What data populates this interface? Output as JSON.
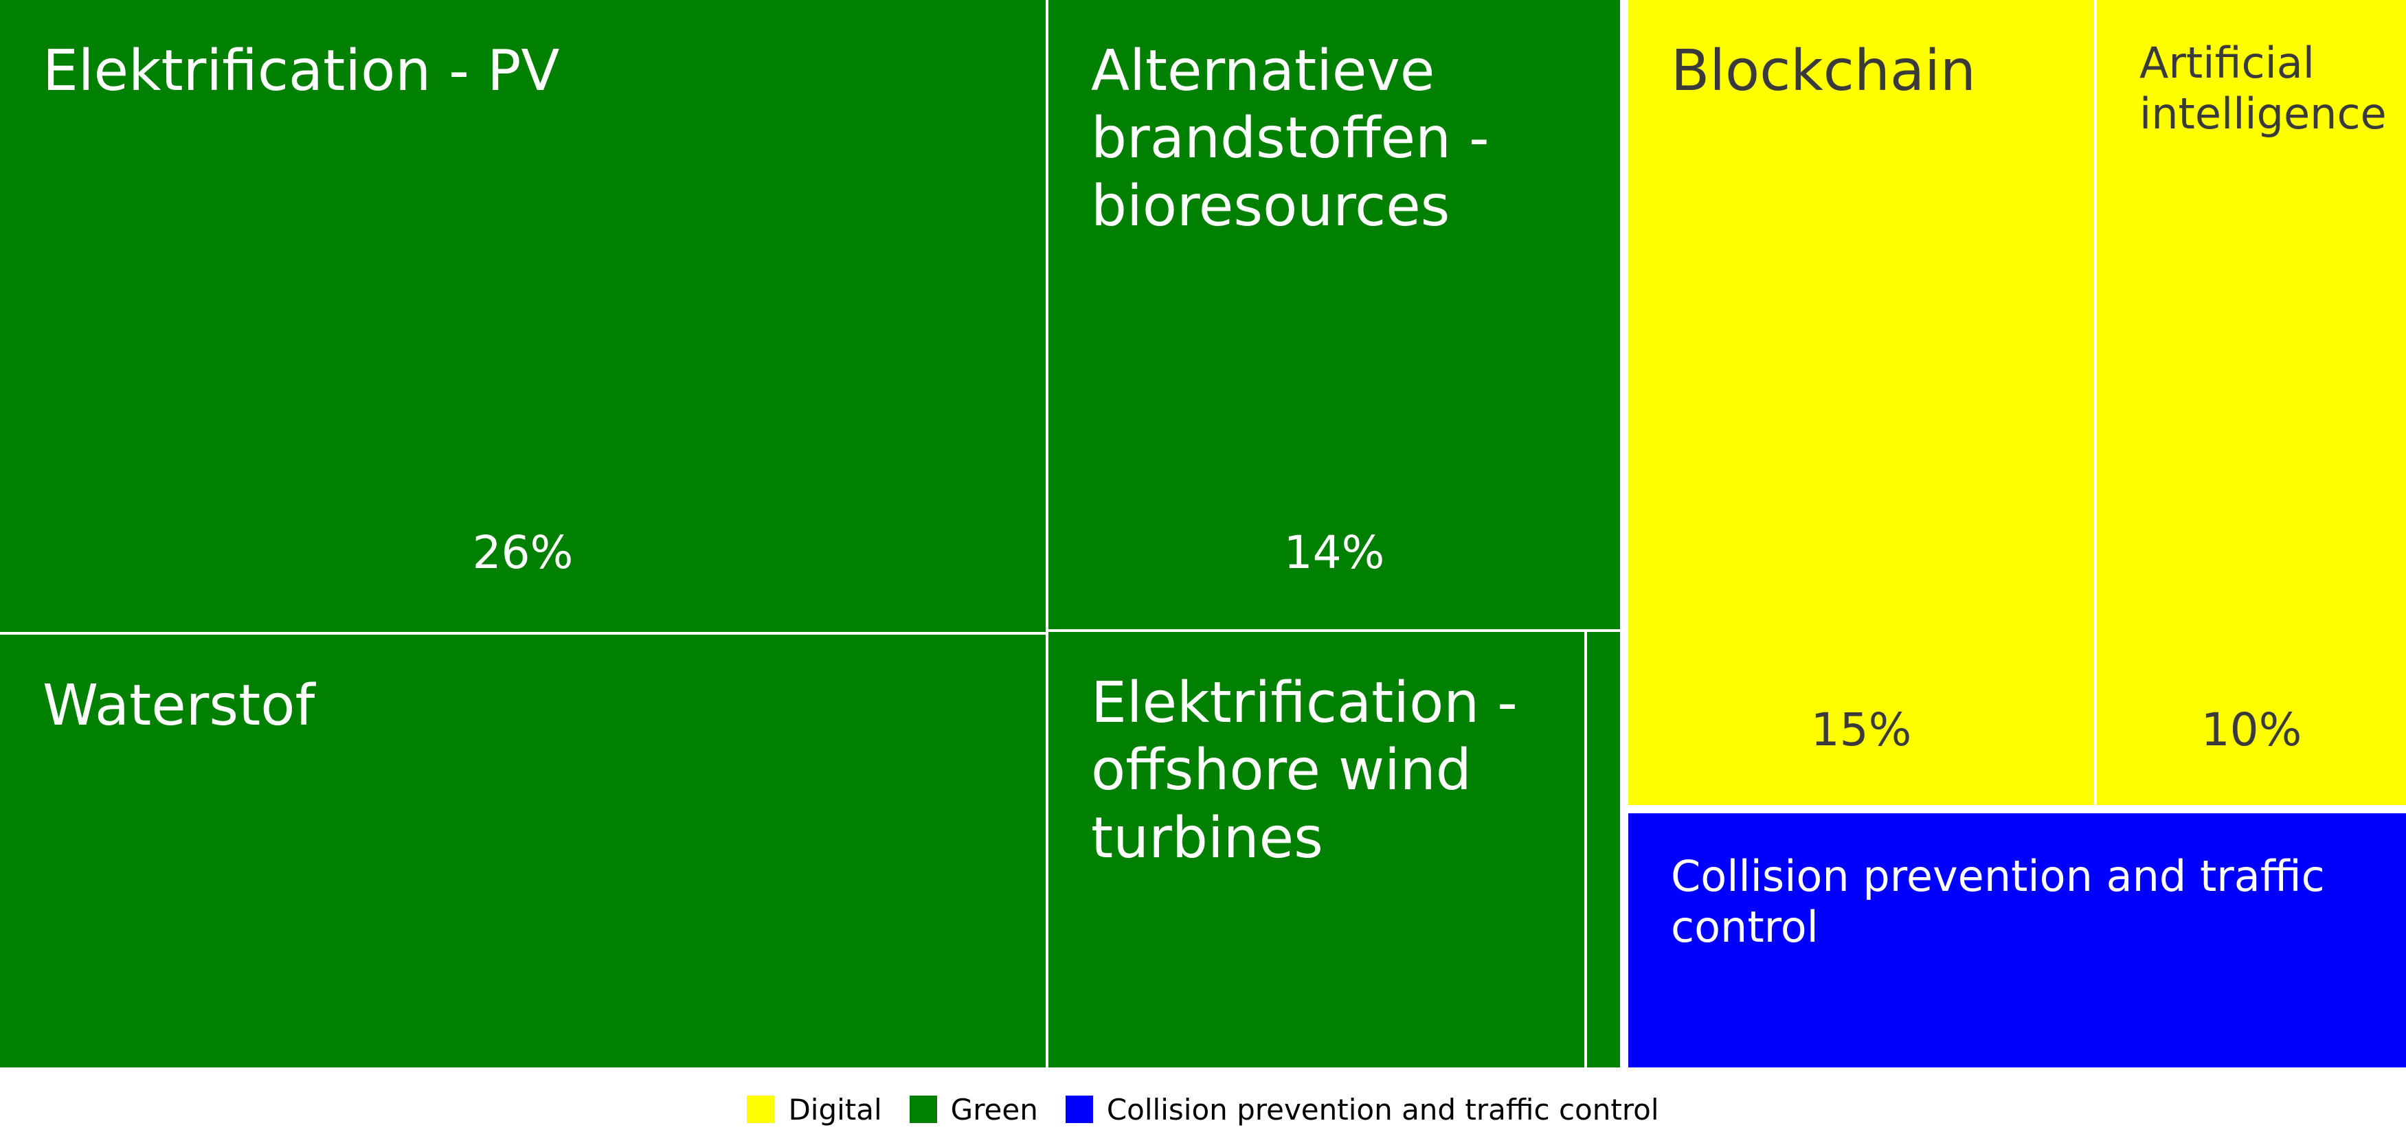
{
  "chart_data": {
    "type": "treemap",
    "title": "",
    "tiles": [
      {
        "label": "Elektrification - PV",
        "category": "Green",
        "value_label": "26%"
      },
      {
        "label": "Waterstof",
        "category": "Green",
        "value_label": ""
      },
      {
        "label": "Alternatieve brandstoffen - bioresources",
        "category": "Green",
        "value_label": "14%"
      },
      {
        "label": "Elektrification - offshore wind turbines",
        "category": "Green",
        "value_label": ""
      },
      {
        "label": "",
        "category": "Green",
        "value_label": ""
      },
      {
        "label": "Blockchain",
        "category": "Digital",
        "value_label": "15%"
      },
      {
        "label": "Artificial intelligence",
        "category": "Digital",
        "value_label": "10%"
      },
      {
        "label": "Collision prevention and traffic control",
        "category": "Collision prevention and traffic control",
        "value_label": ""
      }
    ],
    "legend": {
      "position": "bottom",
      "items": [
        {
          "label": "Digital",
          "color": "#ffff00"
        },
        {
          "label": "Green",
          "color": "#008000"
        },
        {
          "label": "Collision prevention and traffic control",
          "color": "#0000ff"
        }
      ]
    }
  }
}
